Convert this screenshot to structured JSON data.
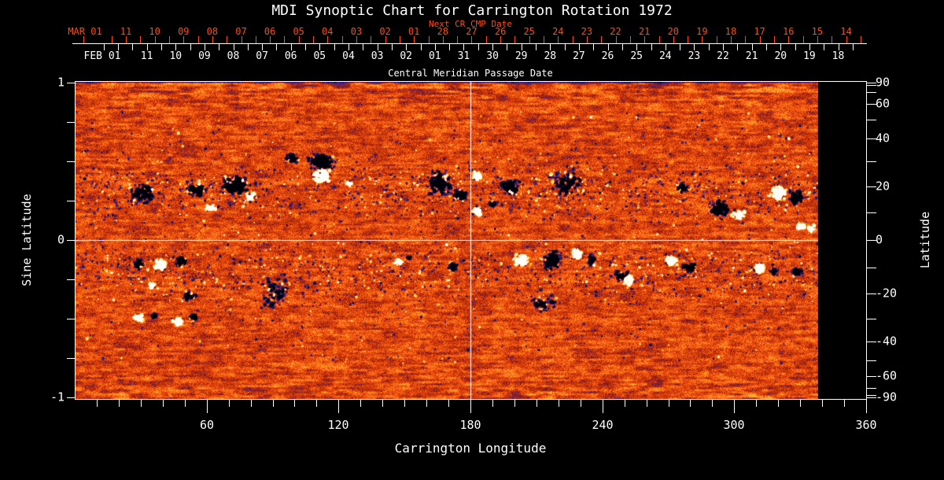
{
  "title": "MDI Synoptic Chart for Carrington Rotation 1972",
  "colors": {
    "background": "#000000",
    "axis": "#ffffff",
    "accent_red": "#ff4a14"
  },
  "top_axis": {
    "next_cr_label": "Next CR CMP Date",
    "cmp_axis_title": "Central Meridian Passage Date",
    "red_month_label": "MAR 01",
    "red_day_labels": [
      "11",
      "10",
      "09",
      "08",
      "07",
      "06",
      "05",
      "04",
      "03",
      "02",
      "01",
      "28",
      "27",
      "26",
      "25",
      "24",
      "23",
      "22",
      "21",
      "20",
      "19",
      "18",
      "17",
      "16",
      "15",
      "14"
    ],
    "white_month_label": "FEB 01",
    "white_day_labels": [
      "11",
      "10",
      "09",
      "08",
      "07",
      "06",
      "05",
      "04",
      "03",
      "02",
      "01",
      "31",
      "30",
      "29",
      "28",
      "27",
      "26",
      "25",
      "24",
      "23",
      "22",
      "21",
      "20",
      "19",
      "18"
    ]
  },
  "left_axis": {
    "title": "Sine Latitude",
    "tick_values": [
      1,
      0.75,
      0.5,
      0.25,
      0,
      -0.25,
      -0.5,
      -0.75,
      -1
    ],
    "labels": [
      {
        "value": 1,
        "text": "1"
      },
      {
        "value": 0,
        "text": "0"
      },
      {
        "value": -1,
        "text": "-1"
      }
    ]
  },
  "right_axis": {
    "title": "Latitude",
    "tick_step_deg": 10,
    "range_deg": [
      -90,
      90
    ],
    "labels": [
      {
        "value": 90,
        "text": "90"
      },
      {
        "value": 60,
        "text": "60"
      },
      {
        "value": 40,
        "text": "40"
      },
      {
        "value": 20,
        "text": "20"
      },
      {
        "value": 0,
        "text": "0"
      },
      {
        "value": -20,
        "text": "-20"
      },
      {
        "value": -40,
        "text": "-40"
      },
      {
        "value": -60,
        "text": "-60"
      },
      {
        "value": -90,
        "text": "-90"
      }
    ]
  },
  "bottom_axis": {
    "title": "Carrington Longitude",
    "tick_step_deg": 10,
    "major_step_deg": 60,
    "range_deg": [
      0,
      360
    ],
    "labels": [
      {
        "value": 60,
        "text": "60"
      },
      {
        "value": 120,
        "text": "120"
      },
      {
        "value": 180,
        "text": "180"
      },
      {
        "value": 240,
        "text": "240"
      },
      {
        "value": 300,
        "text": "300"
      },
      {
        "value": 360,
        "text": "360"
      }
    ]
  },
  "chart_data": {
    "type": "heatmap",
    "title": "MDI Synoptic Chart for Carrington Rotation 1972",
    "xlabel": "Carrington Longitude",
    "ylabel_left": "Sine Latitude",
    "ylabel_right": "Latitude",
    "xlim": [
      0,
      360
    ],
    "ylim_sine_latitude": [
      -1,
      1
    ],
    "data_coverage_longitude": [
      0,
      338
    ],
    "crosshair": {
      "longitude": 180,
      "sine_latitude": 0
    },
    "colormap_stops": [
      [
        -1.0,
        0,
        0,
        8
      ],
      [
        -0.72,
        10,
        10,
        30
      ],
      [
        -0.5,
        45,
        45,
        160
      ],
      [
        -0.36,
        80,
        30,
        120
      ],
      [
        -0.27,
        120,
        20,
        40
      ],
      [
        -0.2,
        155,
        35,
        10
      ],
      [
        -0.07,
        205,
        55,
        10
      ],
      [
        0.05,
        240,
        75,
        14
      ],
      [
        0.16,
        255,
        110,
        24
      ],
      [
        0.3,
        255,
        160,
        40
      ],
      [
        0.44,
        255,
        210,
        70
      ],
      [
        0.58,
        255,
        242,
        160
      ],
      [
        0.72,
        255,
        255,
        240
      ],
      [
        1.5,
        255,
        255,
        252
      ]
    ],
    "noise": {
      "fine_amplitude": 0.36,
      "streak_amplitude": 0.14,
      "streak_top_boost": 1.5,
      "streak_bottom_boost": 1.1,
      "mottle_amplitude": 0.22,
      "speckle_count": 2800,
      "speckle_negative_fraction": 0.72,
      "speckle_band_centers_slat": [
        0.31,
        -0.2
      ],
      "speckle_band_sigma": 0.14,
      "speckle_uniform_fraction": 0.32
    },
    "active_regions": [
      {
        "lon": 30,
        "slat": 0.3,
        "wlon": 21,
        "hslat": 0.2,
        "pol": -1,
        "den": 0.5
      },
      {
        "lon": 55,
        "slat": 0.32,
        "wlon": 14,
        "hslat": 0.15,
        "pol": -1,
        "den": 0.8
      },
      {
        "lon": 62,
        "slat": 0.205,
        "wlon": 9,
        "hslat": 0.07,
        "pol": 1,
        "den": 0.9
      },
      {
        "lon": 73,
        "slat": 0.35,
        "wlon": 20,
        "hslat": 0.2,
        "pol": -1,
        "den": 1.0
      },
      {
        "lon": 80,
        "slat": 0.275,
        "wlon": 8,
        "hslat": 0.07,
        "pol": 1,
        "den": 0.8
      },
      {
        "lon": 98,
        "slat": 0.52,
        "wlon": 11,
        "hslat": 0.12,
        "pol": -1,
        "den": 0.7
      },
      {
        "lon": 112,
        "slat": 0.5,
        "wlon": 20,
        "hslat": 0.17,
        "pol": -1,
        "den": 1.2
      },
      {
        "lon": 112,
        "slat": 0.41,
        "wlon": 14,
        "hslat": 0.14,
        "pol": 1,
        "den": 1.3
      },
      {
        "lon": 125,
        "slat": 0.36,
        "wlon": 5,
        "hslat": 0.05,
        "pol": 1,
        "den": 0.6
      },
      {
        "lon": 166,
        "slat": 0.37,
        "wlon": 16,
        "hslat": 0.27,
        "pol": -1,
        "den": 0.7
      },
      {
        "lon": 175,
        "slat": 0.29,
        "wlon": 11,
        "hslat": 0.12,
        "pol": -1,
        "den": 1.0
      },
      {
        "lon": 183,
        "slat": 0.41,
        "wlon": 8,
        "hslat": 0.09,
        "pol": 1,
        "den": 0.9
      },
      {
        "lon": 183,
        "slat": 0.185,
        "wlon": 7,
        "hslat": 0.11,
        "pol": 1,
        "den": 0.9
      },
      {
        "lon": 190,
        "slat": 0.235,
        "wlon": 8,
        "hslat": 0.07,
        "pol": -1,
        "den": 0.8
      },
      {
        "lon": 198,
        "slat": 0.335,
        "wlon": 14,
        "hslat": 0.17,
        "pol": -1,
        "den": 1.0
      },
      {
        "lon": 198,
        "slat": 0.31,
        "wlon": 5,
        "hslat": 0.05,
        "pol": 1,
        "den": 0.7
      },
      {
        "lon": 224,
        "slat": 0.37,
        "wlon": 29,
        "hslat": 0.3,
        "pol": -1,
        "den": 0.22
      },
      {
        "lon": 276,
        "slat": 0.335,
        "wlon": 11,
        "hslat": 0.11,
        "pol": -1,
        "den": 0.8
      },
      {
        "lon": 293,
        "slat": 0.2,
        "wlon": 14,
        "hslat": 0.17,
        "pol": -1,
        "den": 1.0
      },
      {
        "lon": 302,
        "slat": 0.165,
        "wlon": 10,
        "hslat": 0.11,
        "pol": 1,
        "den": 1.0
      },
      {
        "lon": 320,
        "slat": 0.3,
        "wlon": 13,
        "hslat": 0.15,
        "pol": 1,
        "den": 1.2
      },
      {
        "lon": 328,
        "slat": 0.275,
        "wlon": 11,
        "hslat": 0.15,
        "pol": -1,
        "den": 1.0
      },
      {
        "lon": 330,
        "slat": 0.09,
        "wlon": 7,
        "hslat": 0.08,
        "pol": 1,
        "den": 1.0
      },
      {
        "lon": 335,
        "slat": 0.075,
        "wlon": 6,
        "hslat": 0.07,
        "pol": 1,
        "den": 0.7
      },
      {
        "lon": 29,
        "slat": -0.15,
        "wlon": 10,
        "hslat": 0.125,
        "pol": -1,
        "den": 0.6
      },
      {
        "lon": 39,
        "slat": -0.16,
        "wlon": 9,
        "hslat": 0.12,
        "pol": 1,
        "den": 1.1
      },
      {
        "lon": 35,
        "slat": -0.285,
        "wlon": 6,
        "hslat": 0.07,
        "pol": 1,
        "den": 0.8
      },
      {
        "lon": 48,
        "slat": -0.14,
        "wlon": 9,
        "hslat": 0.11,
        "pol": -1,
        "den": 0.9
      },
      {
        "lon": 52,
        "slat": -0.35,
        "wlon": 9,
        "hslat": 0.1,
        "pol": -1,
        "den": 0.8
      },
      {
        "lon": 29,
        "slat": -0.49,
        "wlon": 8,
        "hslat": 0.08,
        "pol": 1,
        "den": 0.9
      },
      {
        "lon": 36,
        "slat": -0.485,
        "wlon": 6,
        "hslat": 0.07,
        "pol": -1,
        "den": 0.7
      },
      {
        "lon": 47,
        "slat": -0.515,
        "wlon": 8,
        "hslat": 0.08,
        "pol": 1,
        "den": 1.0
      },
      {
        "lon": 54,
        "slat": -0.49,
        "wlon": 7,
        "hslat": 0.08,
        "pol": -1,
        "den": 0.8
      },
      {
        "lon": 91,
        "slat": -0.33,
        "wlon": 25,
        "hslat": 0.35,
        "pol": -1,
        "den": 0.15
      },
      {
        "lon": 147,
        "slat": -0.135,
        "wlon": 6,
        "hslat": 0.06,
        "pol": 1,
        "den": 0.8
      },
      {
        "lon": 152,
        "slat": -0.115,
        "wlon": 5,
        "hslat": 0.05,
        "pol": -1,
        "den": 0.5
      },
      {
        "lon": 172,
        "slat": -0.165,
        "wlon": 9,
        "hslat": 0.09,
        "pol": -1,
        "den": 0.6
      },
      {
        "lon": 203,
        "slat": -0.125,
        "wlon": 13,
        "hslat": 0.14,
        "pol": 1,
        "den": 1.1
      },
      {
        "lon": 217,
        "slat": -0.125,
        "wlon": 13,
        "hslat": 0.2,
        "pol": -1,
        "den": 1.2
      },
      {
        "lon": 228,
        "slat": -0.09,
        "wlon": 8,
        "hslat": 0.12,
        "pol": 1,
        "den": 1.2
      },
      {
        "lon": 235,
        "slat": -0.125,
        "wlon": 7,
        "hslat": 0.125,
        "pol": -1,
        "den": 0.9
      },
      {
        "lon": 213,
        "slat": -0.4,
        "wlon": 21,
        "hslat": 0.2,
        "pol": -1,
        "den": 0.2
      },
      {
        "lon": 249,
        "slat": -0.225,
        "wlon": 11,
        "hslat": 0.125,
        "pol": -1,
        "den": 0.6
      },
      {
        "lon": 252,
        "slat": -0.25,
        "wlon": 9,
        "hslat": 0.1,
        "pol": 1,
        "den": 1.1
      },
      {
        "lon": 271,
        "slat": -0.125,
        "wlon": 9,
        "hslat": 0.1,
        "pol": 1,
        "den": 1.0
      },
      {
        "lon": 280,
        "slat": -0.175,
        "wlon": 10,
        "hslat": 0.1,
        "pol": -1,
        "den": 0.9
      },
      {
        "lon": 311,
        "slat": -0.175,
        "wlon": 10,
        "hslat": 0.1,
        "pol": 1,
        "den": 1.0
      },
      {
        "lon": 318,
        "slat": -0.2,
        "wlon": 6,
        "hslat": 0.07,
        "pol": -1,
        "den": 0.6
      },
      {
        "lon": 329,
        "slat": -0.2,
        "wlon": 9,
        "hslat": 0.09,
        "pol": -1,
        "den": 0.6
      }
    ]
  }
}
